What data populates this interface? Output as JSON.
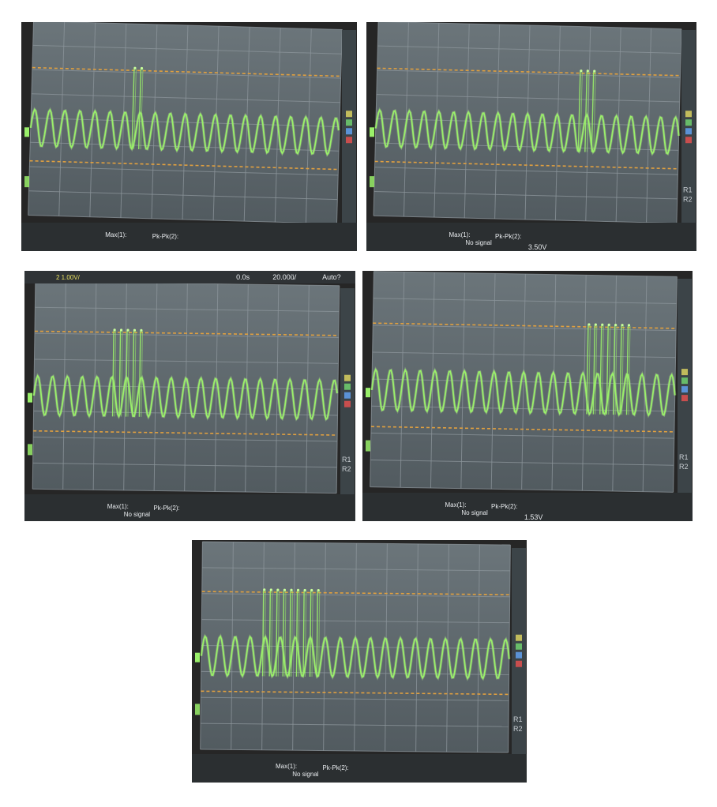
{
  "panels": [
    {
      "id": "p1",
      "tilt_deg": 1.6,
      "burst_count": 2,
      "burst_position": 0.33,
      "footer_texts": {
        "max": "Max(1):",
        "pkpk": "Pk-Pk(2):"
      },
      "side_labels": [],
      "header": null
    },
    {
      "id": "p2",
      "tilt_deg": 1.4,
      "burst_count": 3,
      "burst_position": 0.67,
      "footer_texts": {
        "max": "Max(1):",
        "nosignal": "No signal",
        "pkpk": "Pk-Pk(2):",
        "value": "3.50V"
      },
      "side_labels": [
        "R1",
        "R2"
      ],
      "header": null
    },
    {
      "id": "p3",
      "tilt_deg": 0.8,
      "burst_count": 5,
      "burst_position": 0.26,
      "footer_texts": {
        "max": "Max(1):",
        "nosignal": "No signal",
        "pkpk": "Pk-Pk(2):"
      },
      "side_labels": [
        "R1",
        "R2"
      ],
      "header": {
        "volts": "2 1.00V/",
        "time": "0.0s",
        "timebase": "20.00ũ/",
        "trigger": "Auto?"
      }
    },
    {
      "id": "p4",
      "tilt_deg": 1.0,
      "burst_count": 7,
      "burst_position": 0.71,
      "footer_texts": {
        "max": "Max(1):",
        "nosignal": "No signal",
        "pkpk": "Pk-Pk(2):",
        "value": "1.53V"
      },
      "side_labels": [
        "R1",
        "R2"
      ],
      "header": null
    },
    {
      "id": "p5",
      "tilt_deg": 0.6,
      "burst_count": 9,
      "burst_position": 0.2,
      "footer_texts": {
        "max": "Max(1):",
        "nosignal": "No signal",
        "pkpk": "Pk-Pk(2):"
      },
      "side_labels": [
        "R1",
        "R2"
      ],
      "header": null
    }
  ],
  "colors": {
    "trace": "#9af06a",
    "trace_glow": "#c8ff9a",
    "reference": "#e0a040",
    "grid": "#8d969c",
    "screen": "#5d676c",
    "bezel": "#3a3a3a"
  }
}
